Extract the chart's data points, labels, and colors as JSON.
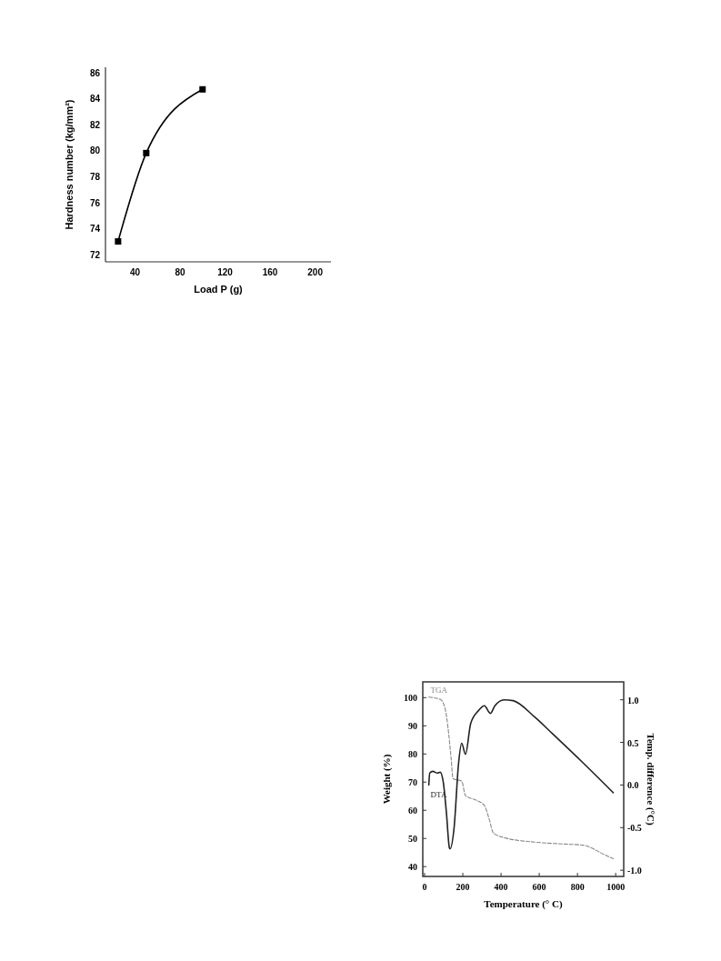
{
  "chart_data": [
    {
      "type": "line",
      "xlabel": "Load P (g)",
      "ylabel": "Hardness number (kg/mm²)",
      "xlim": [
        13.8,
        214
      ],
      "ylim": [
        71.43,
        86.4
      ],
      "xticks": [
        40,
        80,
        120,
        160,
        200
      ],
      "yticks": [
        72,
        74,
        76,
        78,
        80,
        82,
        84,
        86
      ],
      "grid": false,
      "marker": "square",
      "line_style": "solid",
      "series": [
        {
          "color": "#000000",
          "x": [
            25,
            50,
            100
          ],
          "values": [
            73,
            79.8,
            84.7
          ]
        }
      ]
    },
    {
      "type": "line",
      "xlabel": "Temperature (° C)",
      "ylabel": "Weight (%)",
      "y2label": "Temp. difference (°C)",
      "xlim": [
        -9.5,
        1042
      ],
      "ylim": [
        36.5,
        105.6
      ],
      "y2lim": [
        -1.073,
        1.21
      ],
      "xticks": [
        0,
        200,
        400,
        600,
        800,
        1000
      ],
      "yticks": [
        40,
        50,
        60,
        70,
        80,
        90,
        100
      ],
      "y2ticks": [
        {
          "value": -1,
          "label": "-1.0"
        },
        {
          "value": -0.5,
          "label": "-0.5"
        },
        {
          "value": 0,
          "label": "0.0"
        },
        {
          "value": 0.5,
          "label": "0.5"
        },
        {
          "value": 1,
          "label": "1.0"
        }
      ],
      "grid": false,
      "marker": "none",
      "series": [
        {
          "name": "TGA",
          "color": "#888888",
          "line_style": "dashed",
          "x": [
            22,
            82,
            106,
            122,
            138,
            149,
            194,
            214,
            273,
            313,
            337,
            360,
            416,
            575,
            733,
            829,
            940,
            987
          ],
          "values": [
            100.2,
            99.4,
            96.5,
            89.6,
            79.1,
            71.2,
            70.4,
            65.2,
            63.5,
            61.7,
            57.1,
            51.9,
            50.3,
            48.7,
            48,
            47.6,
            44.3,
            42.8
          ]
        },
        {
          "name": "DTA",
          "color": "#222222",
          "line_style": "solid",
          "axis": "y2",
          "x": [
            22,
            27,
            43,
            67,
            82,
            98,
            114,
            130,
            133,
            154,
            178,
            194,
            214,
            241,
            281,
            313,
            344,
            368,
            416,
            463,
            575,
            670,
            829,
            987
          ],
          "values": [
            0,
            0.14,
            0.16,
            0.14,
            0.15,
            0.03,
            -0.32,
            -0.74,
            -0.75,
            -0.51,
            0.26,
            0.49,
            0.36,
            0.72,
            0.87,
            0.93,
            0.84,
            0.93,
            1,
            0.99,
            0.8,
            0.6,
            0.26,
            -0.09
          ]
        }
      ]
    }
  ]
}
